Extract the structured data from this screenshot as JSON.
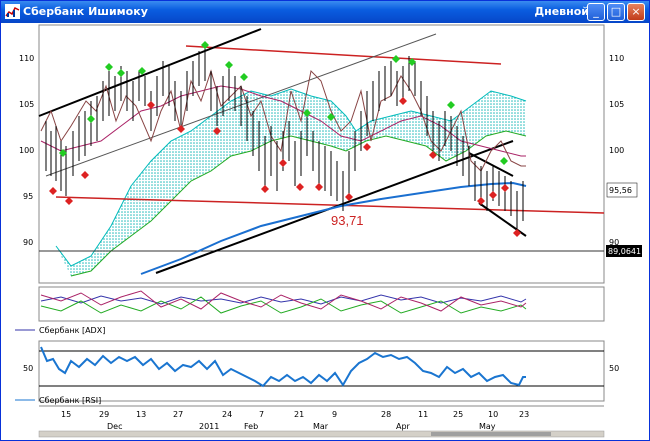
{
  "window": {
    "title": "Сбербанк Ишимоку",
    "period": "Дневной",
    "buttons": [
      "_",
      "□",
      "×"
    ]
  },
  "price_panel": {
    "y_ticks": [
      "110",
      "105",
      "100",
      "95",
      "90"
    ],
    "last_price": "95,56",
    "bottom_value": "89,0641",
    "annotation": "93,71"
  },
  "adx_panel": {
    "legend": "Сбербанк [ADX]"
  },
  "rsi_panel": {
    "legend": "Сбербанк [RSI]",
    "y_tick": "50"
  },
  "x_axis": {
    "day_labels": [
      "15",
      "29",
      "13",
      "27",
      "24",
      "7",
      "21",
      "9",
      "28",
      "11",
      "25",
      "10",
      "23"
    ],
    "month_labels": [
      "Dec",
      "2011",
      "Feb",
      "Mar",
      "Apr",
      "May"
    ]
  },
  "colors": {
    "title_bar": "#0a5de0",
    "candles": "#000000",
    "kumo": "#00cccc",
    "kijun": "#aa2266",
    "tenkan": "#884444",
    "ma": "#1a6fd0",
    "resistance": "#cc2222",
    "buy_signal": "#22cc22",
    "sell_signal": "#dd2222",
    "rsi_line": "#1a75d0"
  }
}
